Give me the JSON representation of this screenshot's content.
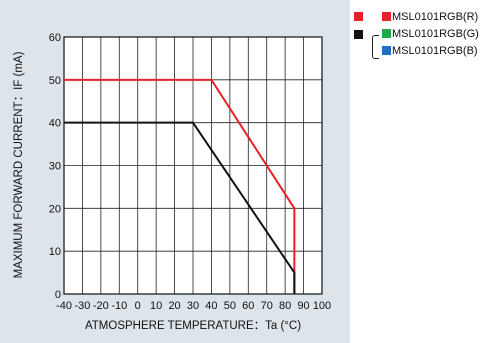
{
  "chart_data": {
    "type": "line",
    "title": "",
    "xlabel": "ATMOSPHERE TEMPERATURE：Ta (°C)",
    "ylabel": "MAXIMUM FORWARD CURRENT：IF (mA)",
    "xlim": [
      -40,
      100
    ],
    "ylim": [
      0,
      60
    ],
    "x_ticks": [
      -40,
      -30,
      -20,
      -10,
      0,
      10,
      20,
      30,
      40,
      50,
      60,
      70,
      80,
      90,
      100
    ],
    "y_ticks": [
      0,
      10,
      20,
      30,
      40,
      50,
      60
    ],
    "x_tick_labels": [
      "-40",
      "-30",
      "-20",
      "-10",
      "0",
      "10",
      "20",
      "30",
      "40",
      "50",
      "60",
      "70",
      "80",
      "90",
      "100"
    ],
    "y_tick_labels": [
      "0",
      "10",
      "20",
      "30",
      "40",
      "50",
      "60"
    ],
    "grid": true,
    "legend_position": "top-right",
    "series": [
      {
        "color": "#e8202a",
        "points": [
          [
            -40,
            50
          ],
          [
            40,
            50
          ],
          [
            85,
            20
          ],
          [
            85,
            0
          ]
        ]
      },
      {
        "color": "#111111",
        "points": [
          [
            -40,
            40
          ],
          [
            30,
            40
          ],
          [
            85,
            5
          ],
          [
            85,
            0
          ]
        ]
      }
    ],
    "legend": {
      "red_group": {
        "marker_color": "#e8202a",
        "items": [
          {
            "label": "MSL0101RGB(R)",
            "color": "#e8202a"
          }
        ]
      },
      "black_group": {
        "marker_color": "#111111",
        "items": [
          {
            "label": "MSL0101RGB(G)",
            "color": "#1aab4a"
          },
          {
            "label": "MSL0101RGB(B)",
            "color": "#1f6fc4"
          }
        ]
      }
    },
    "colors": {
      "panel_background": "#dde4ea",
      "plot_background": "#ffffff",
      "grid": "#222222"
    }
  }
}
